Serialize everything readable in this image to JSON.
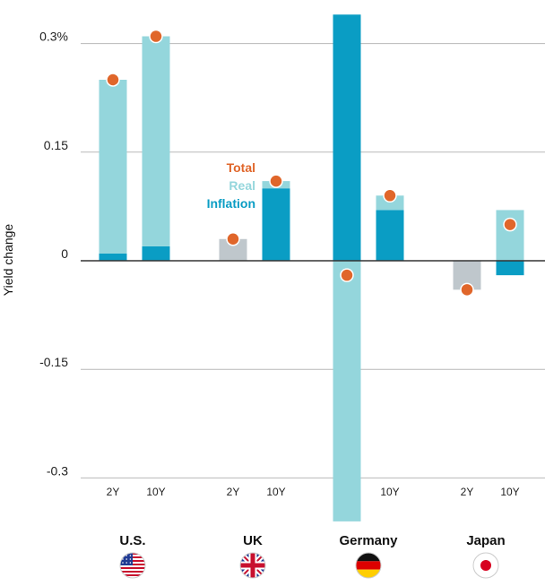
{
  "chart_data": {
    "type": "bar",
    "ylabel": "Yield change",
    "yticks": [
      {
        "value": 0.3,
        "label": "0.3%"
      },
      {
        "value": 0.15,
        "label": "0.15"
      },
      {
        "value": 0,
        "label": "0"
      },
      {
        "value": -0.15,
        "label": "-0.15"
      },
      {
        "value": -0.3,
        "label": "-0.3"
      }
    ],
    "ylim": [
      -0.36,
      0.34
    ],
    "grid": true,
    "legend": {
      "placement": "center-left",
      "entries": [
        {
          "key": "total",
          "label": "Total"
        },
        {
          "key": "real",
          "label": "Real"
        },
        {
          "key": "inflation",
          "label": "Inflation"
        }
      ]
    },
    "colors": {
      "total": "#e0662a",
      "real": "#94d6dc",
      "inflation": "#0a9dc4",
      "neutral": "#bfc7cc",
      "grid": "#b8b8b8",
      "axis": "#333333"
    },
    "groups": [
      {
        "country": "U.S.",
        "flag": "us-flag-icon",
        "bars": [
          {
            "label": "2Y",
            "total": 0.25,
            "real": 0.24,
            "inflation": 0.01
          },
          {
            "label": "10Y",
            "total": 0.31,
            "real": 0.29,
            "inflation": 0.02
          }
        ]
      },
      {
        "country": "UK",
        "flag": "uk-flag-icon",
        "bars": [
          {
            "label": "2Y",
            "total": 0.03,
            "real": 0.03,
            "inflation": 0.0,
            "neutral": true
          },
          {
            "label": "10Y",
            "total": 0.11,
            "real": 0.01,
            "inflation": 0.1
          }
        ]
      },
      {
        "country": "Germany",
        "flag": "germany-flag-icon",
        "bars": [
          {
            "label": "",
            "total": -0.02,
            "real": -0.36,
            "inflation": 0.34
          },
          {
            "label": "10Y",
            "total": 0.09,
            "real": 0.02,
            "inflation": 0.07
          }
        ]
      },
      {
        "country": "Japan",
        "flag": "japan-flag-icon",
        "bars": [
          {
            "label": "2Y",
            "total": -0.04,
            "real": -0.04,
            "inflation": 0.0,
            "neutral": true
          },
          {
            "label": "10Y",
            "total": 0.05,
            "real": 0.07,
            "inflation": -0.02
          }
        ]
      }
    ]
  }
}
